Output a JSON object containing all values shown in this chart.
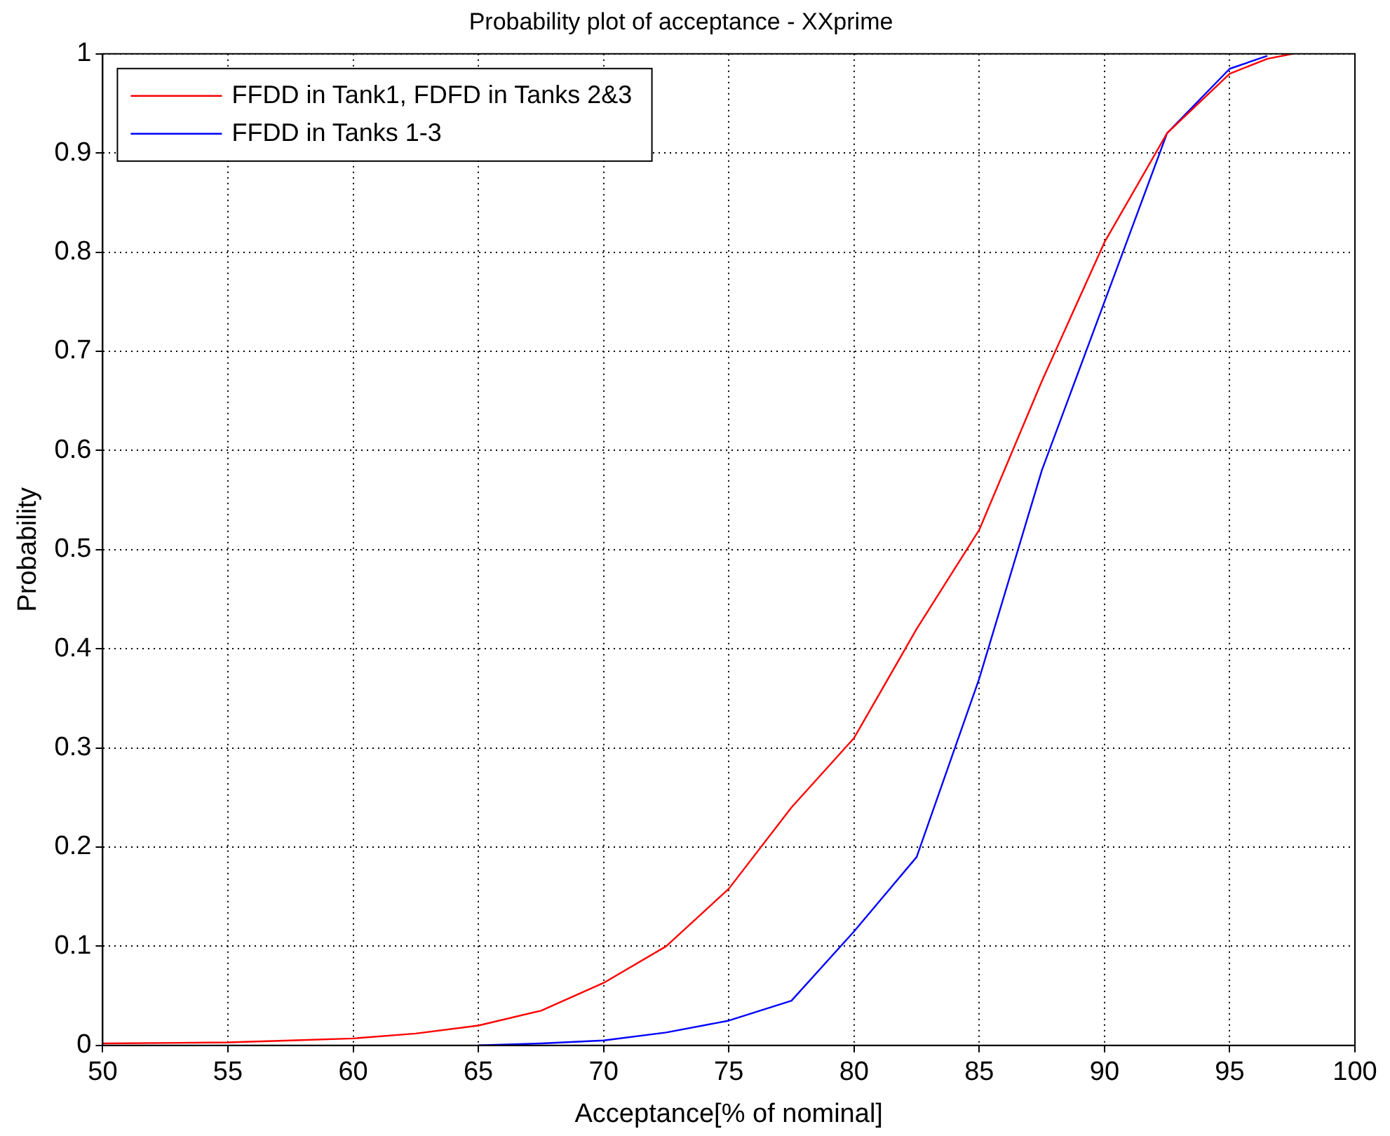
{
  "chart_data": {
    "type": "line",
    "title": "Probability plot of acceptance - XXprime",
    "xlabel": "Acceptance[% of nominal]",
    "ylabel": "Probability",
    "xlim": [
      50,
      100
    ],
    "xticks": [
      50,
      55,
      60,
      65,
      70,
      75,
      80,
      85,
      90,
      95,
      100
    ],
    "ylim": [
      0,
      1
    ],
    "yticks": [
      0,
      0.1,
      0.2,
      0.3,
      0.4,
      0.5,
      0.6,
      0.7,
      0.8,
      0.9,
      1
    ],
    "grid": true,
    "legend": "top left",
    "marker": "none",
    "line_style": "solid",
    "series": [
      {
        "name": "FFDD in Tank1, FDFD in Tanks 2&3",
        "color": "#ff0000",
        "x": [
          50,
          55,
          57.5,
          60,
          62.5,
          65,
          67.5,
          70,
          72.5,
          75,
          77.5,
          80,
          82.5,
          85,
          87.5,
          90,
          92.5,
          95,
          96.5,
          97.5
        ],
        "values": [
          0.002,
          0.003,
          0.005,
          0.007,
          0.012,
          0.02,
          0.035,
          0.063,
          0.1,
          0.158,
          0.24,
          0.31,
          0.42,
          0.52,
          0.67,
          0.81,
          0.92,
          0.98,
          0.995,
          1
        ]
      },
      {
        "name": "FFDD in Tanks 1-3",
        "color": "#0000ff",
        "x": [
          65,
          67.5,
          70,
          72.5,
          75,
          77.5,
          80,
          82.5,
          85,
          87.5,
          90,
          92.5,
          95,
          96.5
        ],
        "values": [
          0,
          0.002,
          0.005,
          0.013,
          0.025,
          0.045,
          0.115,
          0.19,
          0.37,
          0.58,
          0.75,
          0.92,
          0.985,
          0.998
        ]
      }
    ]
  }
}
